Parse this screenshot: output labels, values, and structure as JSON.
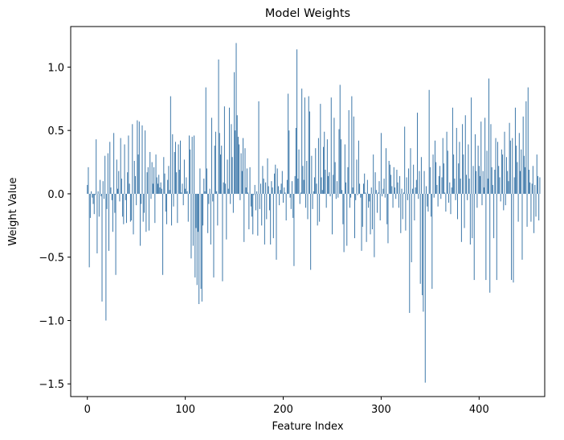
{
  "chart_data": {
    "type": "bar",
    "title": "Model Weights",
    "xlabel": "Feature Index",
    "ylabel": "Weight Value",
    "xlim": [
      -17,
      467
    ],
    "ylim": [
      -1.6,
      1.32
    ],
    "xticks": [
      0,
      100,
      200,
      300,
      400
    ],
    "yticks": [
      -1.5,
      -1.0,
      -0.5,
      0.0,
      0.5,
      1.0
    ],
    "ytick_labels": [
      "−1.5",
      "−1.0",
      "−0.5",
      "0.0",
      "0.5",
      "1.0"
    ],
    "bar_color": "#3a76a8",
    "grid": false,
    "legend": "none",
    "x_start": 0,
    "values": [
      0.07,
      0.21,
      -0.58,
      -0.19,
      0.02,
      -0.03,
      -0.08,
      -0.16,
      -0.01,
      0.43,
      -0.47,
      0.02,
      -0.18,
      0.11,
      -0.02,
      -0.85,
      0.1,
      -0.04,
      0.3,
      -1.0,
      -0.12,
      0.32,
      -0.45,
      0.41,
      0.05,
      -0.05,
      -0.3,
      0.48,
      -0.15,
      -0.64,
      0.27,
      0.04,
      0.18,
      -0.06,
      0.44,
      0.12,
      -0.18,
      -0.24,
      0.39,
      -0.05,
      -0.23,
      0.17,
      0.46,
      0.08,
      -0.22,
      -0.21,
      0.55,
      -0.32,
      0.26,
      0.14,
      -0.09,
      0.58,
      0.31,
      0.57,
      -0.41,
      -0.08,
      0.54,
      -0.22,
      -0.15,
      0.5,
      -0.3,
      0.17,
      0.21,
      -0.29,
      0.33,
      -0.04,
      0.25,
      0.08,
      0.21,
      -0.23,
      0.31,
      0.13,
      0.08,
      0.15,
      0.05,
      0.09,
      0.04,
      -0.64,
      0.29,
      0.16,
      -0.14,
      -0.24,
      0.11,
      0.22,
      0.03,
      0.77,
      -0.25,
      0.47,
      -0.1,
      0.33,
      0.41,
      0.17,
      -0.23,
      0.39,
      0.19,
      0.42,
      0.01,
      0.08,
      -0.09,
      0.27,
      0.04,
      0.13,
      0.02,
      -0.22,
      0.46,
      0.35,
      -0.51,
      0.45,
      -0.41,
      0.46,
      -0.66,
      -0.27,
      -0.72,
      -0.3,
      -0.87,
      0.2,
      -0.75,
      -0.85,
      -0.25,
      0.12,
      0.02,
      0.84,
      0.2,
      -0.31,
      -0.08,
      0.04,
      -0.4,
      0.6,
      -0.06,
      -0.66,
      0.38,
      0.49,
      0.02,
      -0.25,
      1.06,
      0.48,
      0.31,
      0.38,
      -0.69,
      0.09,
      0.69,
      0.08,
      -0.36,
      0.27,
      0.04,
      0.68,
      -0.08,
      0.55,
      0.29,
      -0.15,
      0.96,
      0.5,
      1.19,
      0.62,
      0.45,
      0.39,
      -0.05,
      0.32,
      0.18,
      0.44,
      -0.38,
      0.36,
      0.05,
      0.2,
      0.01,
      -0.28,
      0.21,
      -0.1,
      -0.18,
      -0.32,
      -0.01,
      0.07,
      -0.13,
      0.02,
      -0.33,
      0.73,
      -0.12,
      0.08,
      -0.25,
      0.22,
      0.12,
      -0.4,
      0.09,
      -0.2,
      0.28,
      0.06,
      -0.13,
      -0.4,
      0.1,
      0.05,
      -0.35,
      0.16,
      0.23,
      -0.52,
      0.2,
      0.06,
      -0.09,
      0.03,
      0.08,
      0.18,
      -0.07,
      0.05,
      0.01,
      -0.21,
      0.11,
      0.79,
      0.5,
      -0.03,
      -0.12,
      0.1,
      -0.19,
      -0.57,
      0.14,
      0.52,
      1.14,
      0.12,
      0.35,
      -0.08,
      0.01,
      0.83,
      0.22,
      0.11,
      0.76,
      -0.11,
      0.26,
      -0.2,
      0.77,
      0.65,
      -0.6,
      0.3,
      -0.12,
      0.02,
      0.13,
      0.36,
      0.08,
      -0.25,
      0.44,
      -0.22,
      0.71,
      0.13,
      0.03,
      0.37,
      0.49,
      0.19,
      -0.11,
      0.43,
      0.14,
      0.17,
      -0.02,
      0.76,
      -0.32,
      0.15,
      0.6,
      0.25,
      -0.04,
      0.1,
      -0.03,
      0.51,
      0.86,
      0.43,
      0.03,
      -0.24,
      -0.46,
      0.39,
      0.09,
      -0.41,
      0.21,
      0.66,
      -0.11,
      -0.03,
      0.77,
      0.05,
      0.61,
      -0.35,
      -0.05,
      0.27,
      -0.01,
      0.42,
      0.08,
      -0.03,
      -0.45,
      -0.26,
      0.08,
      0.16,
      0.01,
      -0.38,
      0.11,
      -0.11,
      -0.06,
      -0.32,
      0.05,
      -0.28,
      0.31,
      -0.5,
      0.17,
      0.03,
      -0.15,
      0.01,
      0.1,
      -0.21,
      0.48,
      -0.02,
      0.04,
      0.12,
      -0.03,
      0.36,
      -0.24,
      -0.39,
      0.26,
      0.23,
      0.15,
      0.06,
      -0.11,
      0.21,
      0.05,
      -0.04,
      0.19,
      0.09,
      -0.11,
      0.14,
      -0.31,
      0.04,
      -0.2,
      0.01,
      0.53,
      -0.29,
      0.13,
      -0.05,
      0.2,
      -0.94,
      0.36,
      -0.54,
      0.04,
      0.23,
      -0.21,
      0.05,
      0.11,
      0.64,
      -0.04,
      0.18,
      -0.71,
      0.29,
      -0.8,
      -0.93,
      0.18,
      -1.49,
      0.06,
      -0.1,
      -0.14,
      0.82,
      0.21,
      -0.18,
      -0.75,
      0.31,
      -0.03,
      0.42,
      0.25,
      0.07,
      -0.1,
      0.14,
      0.22,
      -0.04,
      0.13,
      0.44,
      0.24,
      0.01,
      -0.14,
      0.49,
      0.34,
      -0.07,
      0.09,
      -0.16,
      0.05,
      0.68,
      0.31,
      0.12,
      -0.05,
      0.52,
      -0.2,
      0.24,
      0.41,
      0.12,
      -0.38,
      0.55,
      0.31,
      -0.27,
      0.62,
      0.15,
      -0.05,
      0.39,
      0.12,
      -0.4,
      0.76,
      -0.35,
      0.22,
      -0.68,
      0.47,
      0.18,
      -0.11,
      0.38,
      0.22,
      0.14,
      0.57,
      -0.09,
      0.18,
      0.05,
      0.6,
      -0.68,
      0.34,
      0.12,
      0.91,
      -0.78,
      0.55,
      0.21,
      0.07,
      -0.35,
      0.19,
      0.44,
      -0.68,
      0.41,
      0.22,
      0.13,
      -0.06,
      0.35,
      0.31,
      -0.13,
      0.49,
      -0.09,
      0.29,
      0.18,
      0.1,
      0.56,
      0.42,
      -0.68,
      0.44,
      -0.7,
      0.13,
      0.68,
      0.38,
      0.25,
      -0.22,
      0.48,
      0.18,
      0.35,
      -0.52,
      0.61,
      0.3,
      0.21,
      0.73,
      -0.26,
      0.84,
      0.19,
      0.09,
      -0.22,
      0.08,
      0.22,
      -0.31,
      0.07,
      -0.18,
      0.31,
      0.14,
      -0.21,
      0.13
    ]
  }
}
